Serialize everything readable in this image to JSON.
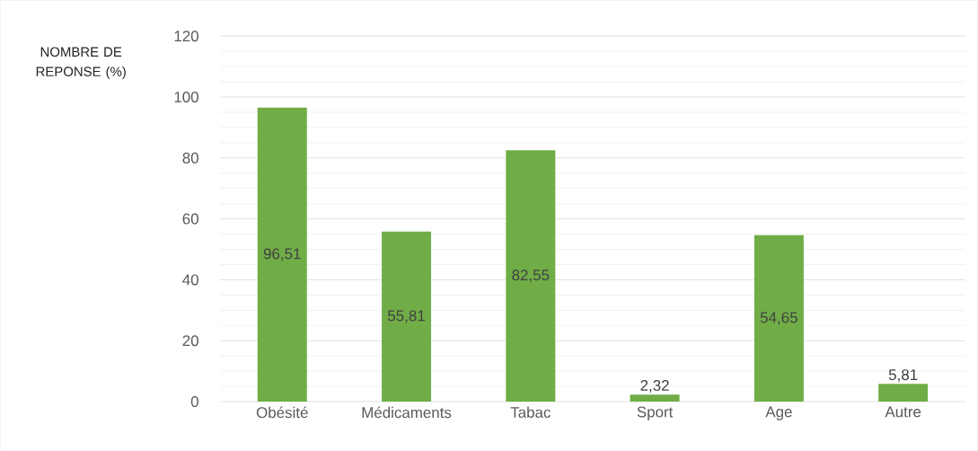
{
  "chart_data": {
    "type": "bar",
    "ylabel": "NOMBRE DE REPONSE (%)",
    "categories": [
      "Obésité",
      "Médicaments",
      "Tabac",
      "Sport",
      "Age",
      "Autre"
    ],
    "values": [
      96.51,
      55.81,
      82.55,
      2.32,
      54.65,
      5.81
    ],
    "value_labels": [
      "96,51",
      "55,81",
      "82,55",
      "2,32",
      "54,65",
      "5,81"
    ],
    "color": "#70ad47",
    "ylim": [
      0,
      120
    ],
    "yticks": [
      0,
      20,
      40,
      60,
      80,
      100,
      120
    ],
    "grid": "y"
  }
}
